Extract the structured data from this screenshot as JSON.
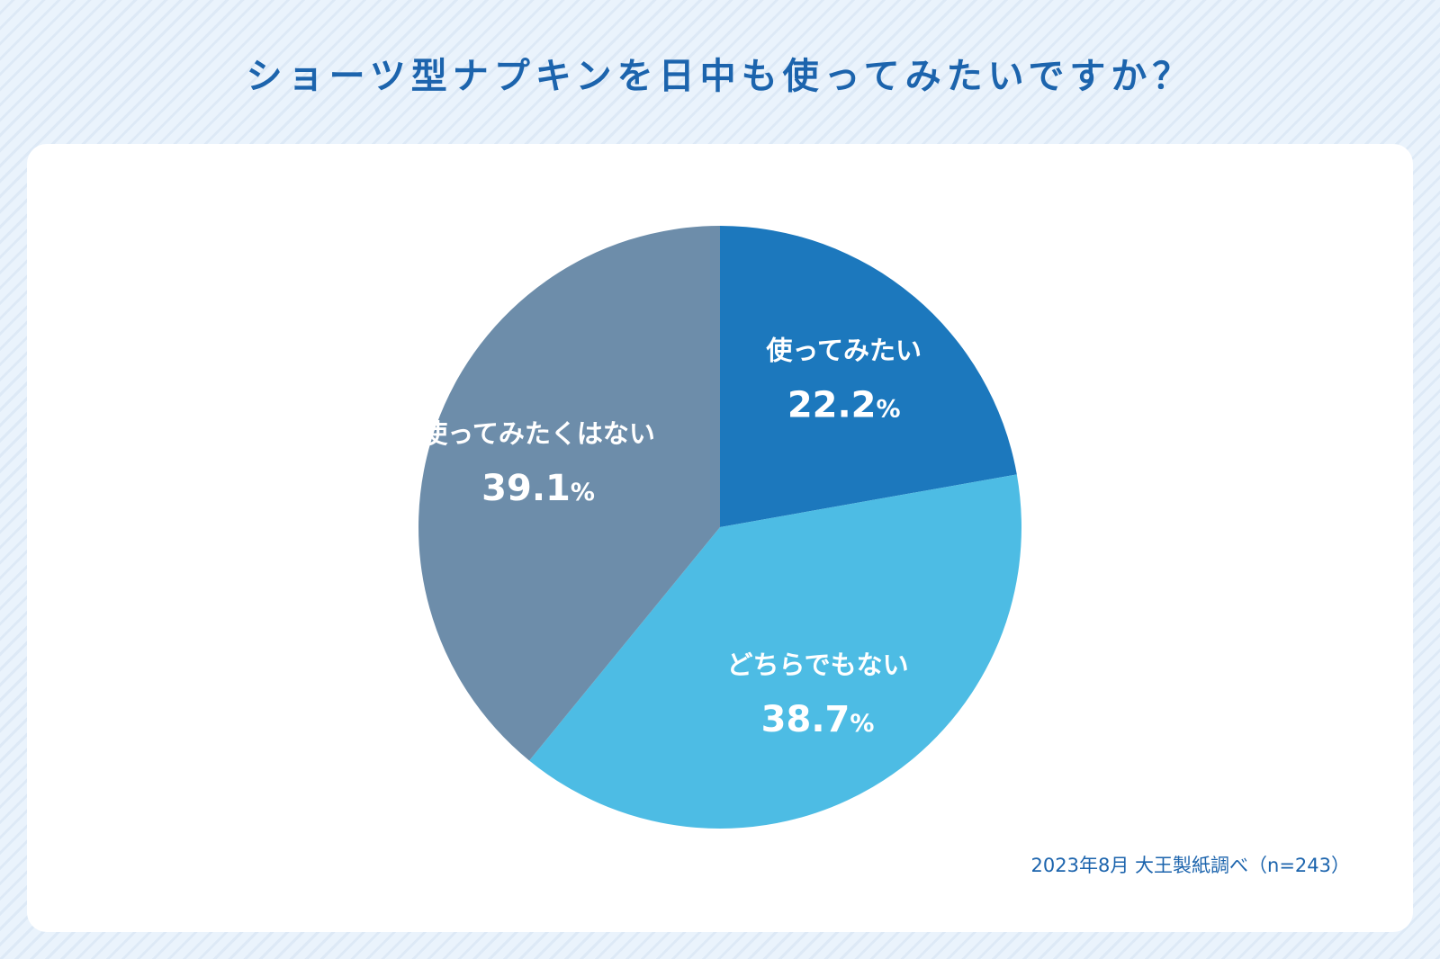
{
  "title": "ショーツ型ナプキンを日中も使ってみたいですか？",
  "source_note": "2023年8月 大王製紙調べ（n=243）",
  "chart_data": {
    "type": "pie",
    "title": "ショーツ型ナプキンを日中も使ってみたいですか？",
    "unit": "%",
    "slices": [
      {
        "label": "使ってみたい",
        "value": 22.2,
        "color": "#1c78bd"
      },
      {
        "label": "どちらでもない",
        "value": 38.7,
        "color": "#4dbce4"
      },
      {
        "label": "使ってみたくはない",
        "value": 39.1,
        "color": "#6d8daa"
      }
    ],
    "start_angle": "12 o'clock",
    "direction": "clockwise",
    "legend": "none",
    "labels_inside_slices": true
  }
}
